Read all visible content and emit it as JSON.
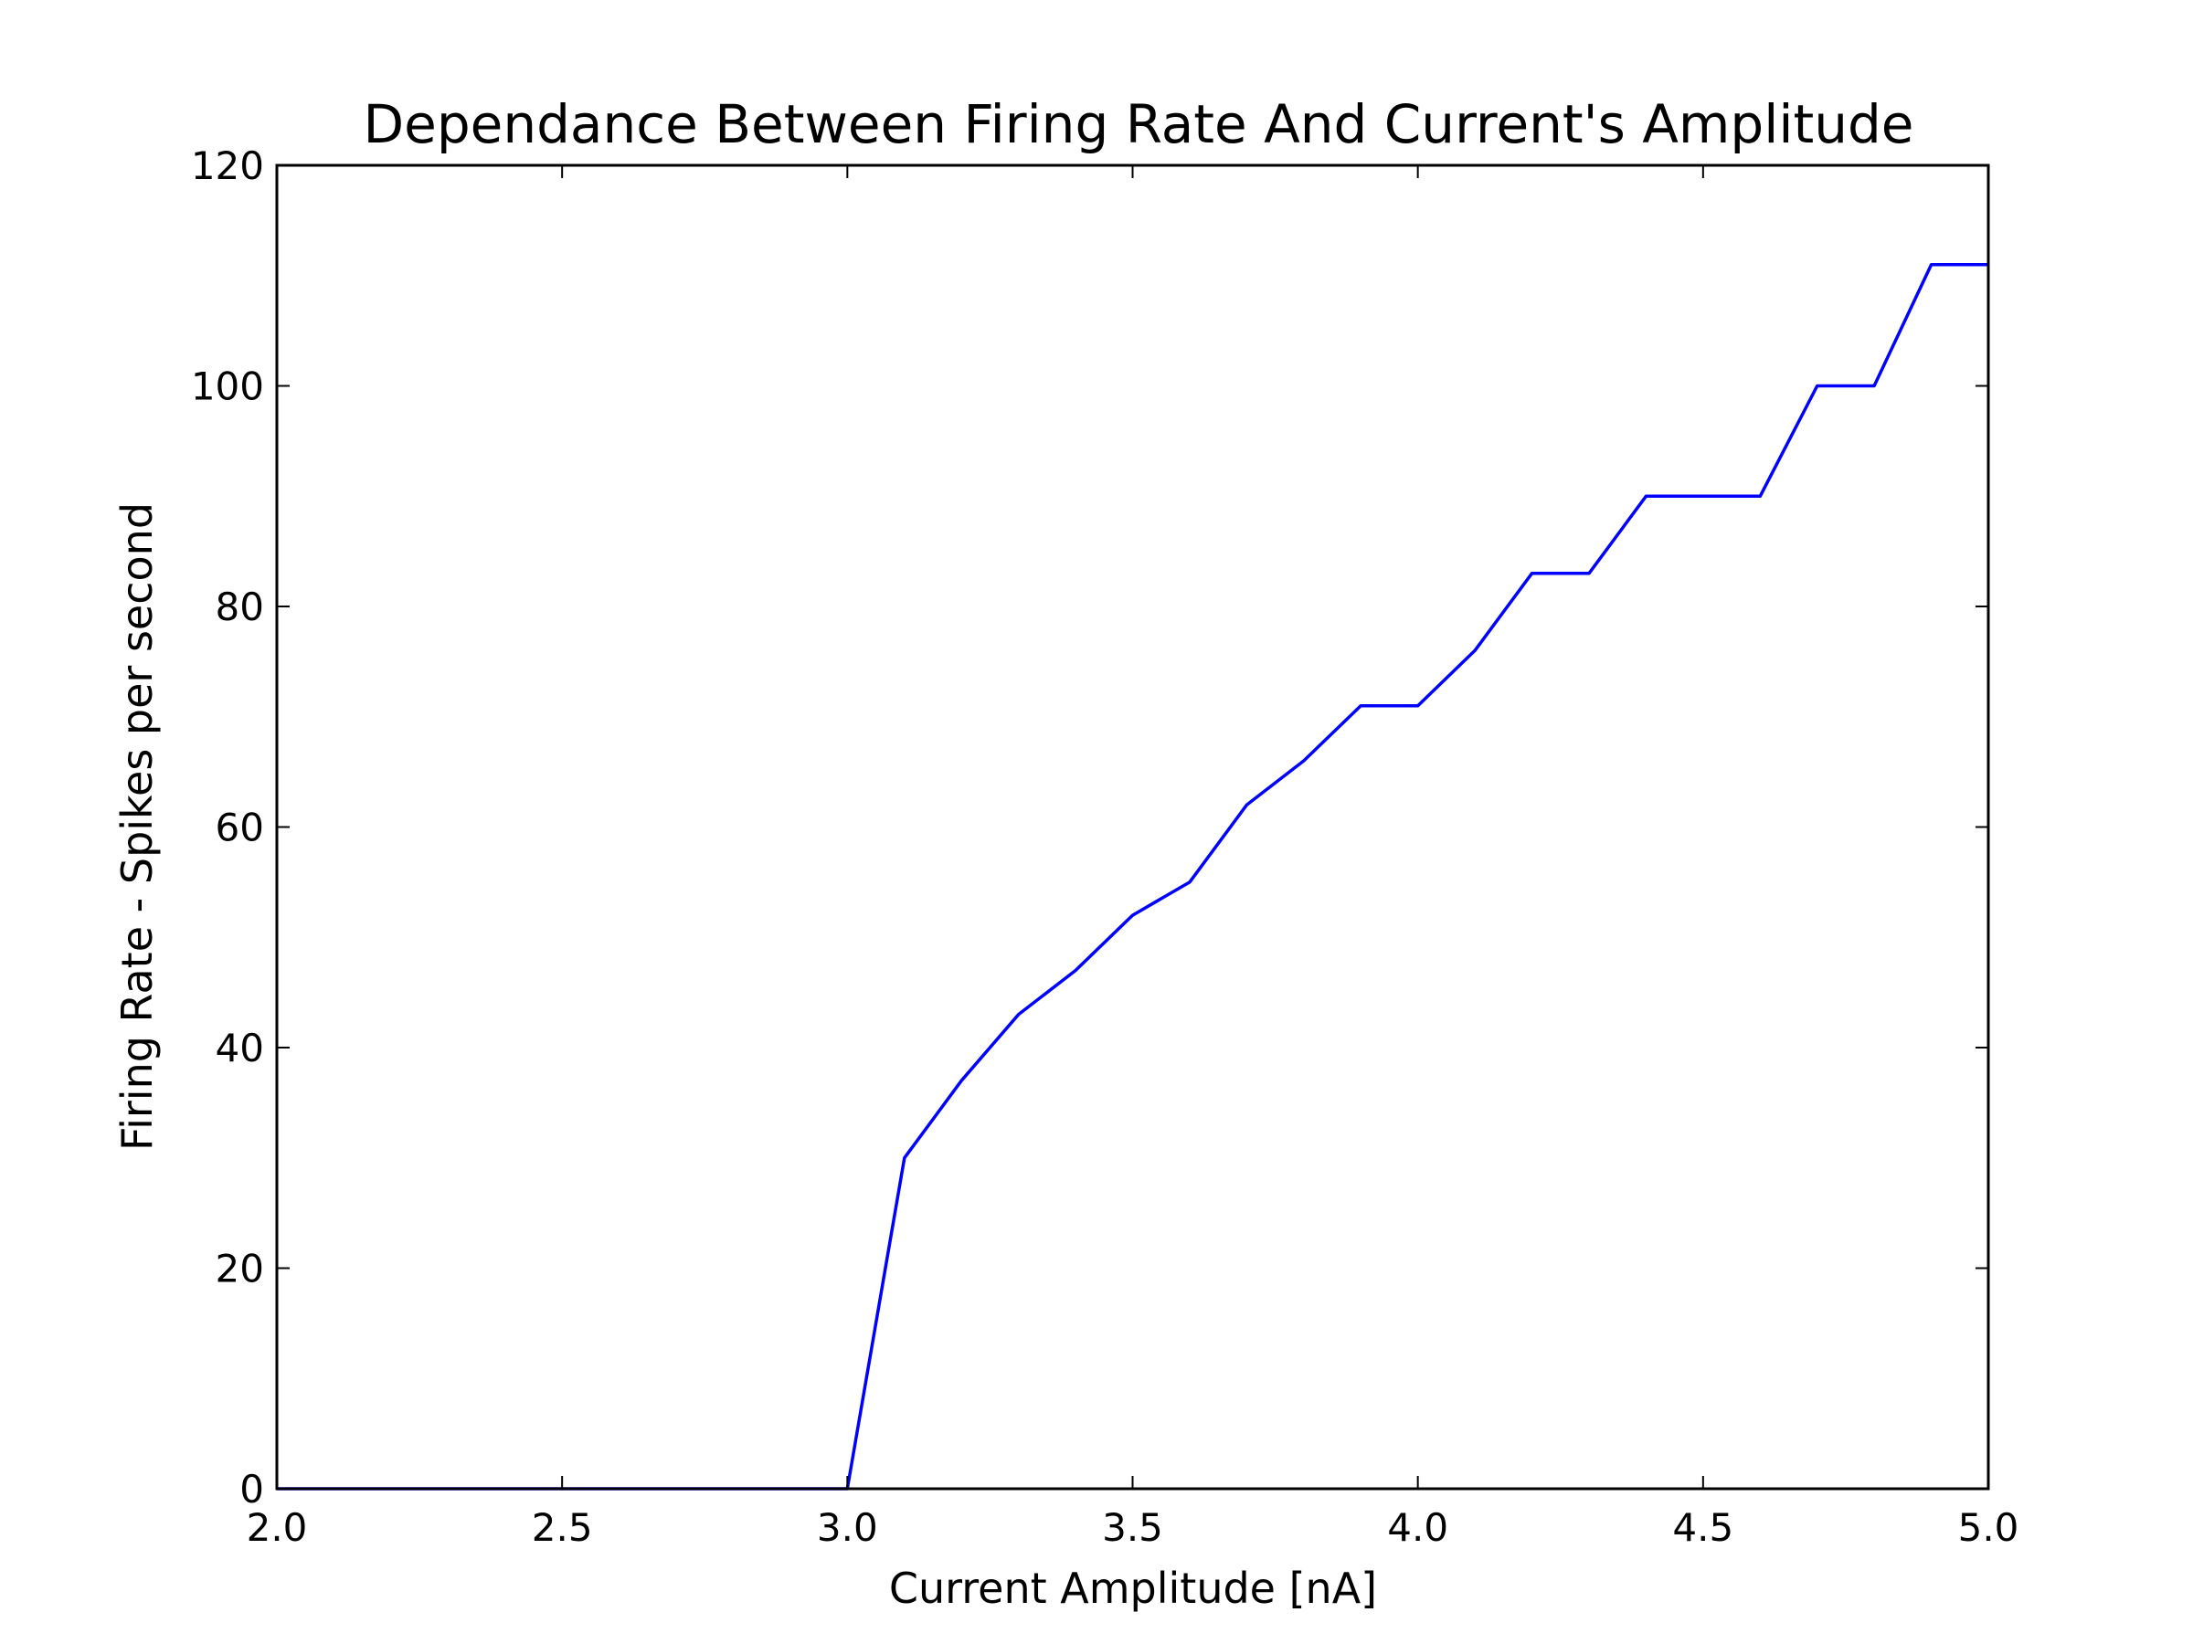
{
  "chart_data": {
    "type": "line",
    "title": "Dependance Between Firing Rate And Current's Amplitude",
    "xlabel": "Current Amplitude [nA]",
    "ylabel": "Firing Rate - Spikes per second",
    "xlim": [
      2.0,
      5.0
    ],
    "ylim": [
      0,
      120
    ],
    "xticks": [
      "2.0",
      "2.5",
      "3.0",
      "3.5",
      "4.0",
      "4.5",
      "5.0"
    ],
    "yticks": [
      "0",
      "20",
      "40",
      "60",
      "80",
      "100",
      "120"
    ],
    "grid": false,
    "legend": "none",
    "series": [
      {
        "color": "#0000ff",
        "x": [
          2.0,
          2.1,
          2.2,
          2.3,
          2.4,
          2.5,
          2.6,
          2.7,
          2.8,
          2.9,
          3.0,
          3.1,
          3.2,
          3.3,
          3.4,
          3.5,
          3.6,
          3.7,
          3.8,
          3.9,
          4.0,
          4.1,
          4.2,
          4.3,
          4.4,
          4.5,
          4.6,
          4.7,
          4.8,
          4.9,
          5.0
        ],
        "y": [
          0,
          0,
          0,
          0,
          0,
          0,
          0,
          0,
          0,
          0,
          0,
          30,
          37,
          43,
          47,
          52,
          55,
          62,
          66,
          71,
          71,
          76,
          83,
          83,
          90,
          90,
          90,
          100,
          100,
          111,
          111
        ]
      }
    ]
  }
}
